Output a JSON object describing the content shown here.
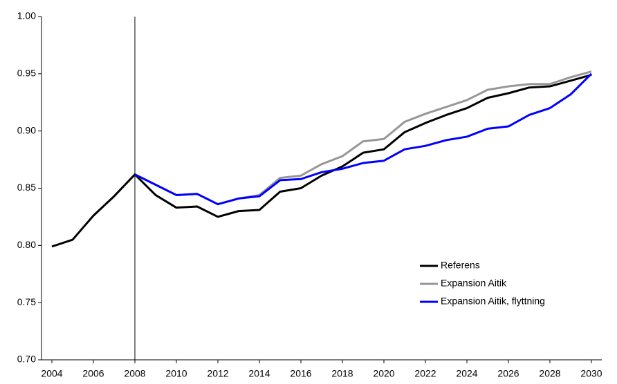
{
  "chart_data": {
    "type": "line",
    "x": [
      2004,
      2005,
      2006,
      2007,
      2008,
      2009,
      2010,
      2011,
      2012,
      2013,
      2014,
      2015,
      2016,
      2017,
      2018,
      2019,
      2020,
      2021,
      2022,
      2023,
      2024,
      2025,
      2026,
      2027,
      2028,
      2029,
      2030
    ],
    "series": [
      {
        "name": "Referens",
        "color": "#000000",
        "values": [
          0.799,
          0.805,
          0.826,
          0.843,
          0.862,
          0.844,
          0.833,
          0.834,
          0.825,
          0.83,
          0.831,
          0.847,
          0.85,
          0.861,
          0.869,
          0.881,
          0.884,
          0.899,
          0.907,
          0.914,
          0.92,
          0.929,
          0.933,
          0.938,
          0.939,
          0.944,
          0.949
        ]
      },
      {
        "name": "Expansion Aitik",
        "color": "#969696",
        "values": [
          null,
          null,
          null,
          null,
          0.862,
          0.853,
          0.844,
          0.845,
          0.836,
          0.841,
          0.844,
          0.859,
          0.861,
          0.871,
          0.878,
          0.891,
          0.893,
          0.908,
          0.915,
          0.921,
          0.927,
          0.936,
          0.939,
          0.941,
          0.941,
          0.947,
          0.952
        ]
      },
      {
        "name": "Expansion Aitik, flyttning",
        "color": "#0000ff",
        "values": [
          null,
          null,
          null,
          null,
          0.862,
          0.853,
          0.844,
          0.845,
          0.836,
          0.841,
          0.843,
          0.857,
          0.858,
          0.864,
          0.867,
          0.872,
          0.874,
          0.884,
          0.887,
          0.892,
          0.895,
          0.902,
          0.904,
          0.914,
          0.92,
          0.932,
          0.95
        ]
      }
    ],
    "xlim": [
      2003.5,
      2030.5
    ],
    "xticks": [
      2004,
      2006,
      2008,
      2010,
      2012,
      2014,
      2016,
      2018,
      2020,
      2022,
      2024,
      2026,
      2028,
      2030
    ],
    "ylim": [
      0.7,
      1.0
    ],
    "yticks": [
      {
        "value": 0.7,
        "label": "0.70"
      },
      {
        "value": 0.75,
        "label": "0.75"
      },
      {
        "value": 0.8,
        "label": "0.80"
      },
      {
        "value": 0.85,
        "label": "0.85"
      },
      {
        "value": 0.9,
        "label": "0.90"
      },
      {
        "value": 0.95,
        "label": "0.95"
      },
      {
        "value": 1.0,
        "label": "1.00"
      }
    ],
    "vline": 2008,
    "grid": false,
    "legend": "lower right"
  }
}
